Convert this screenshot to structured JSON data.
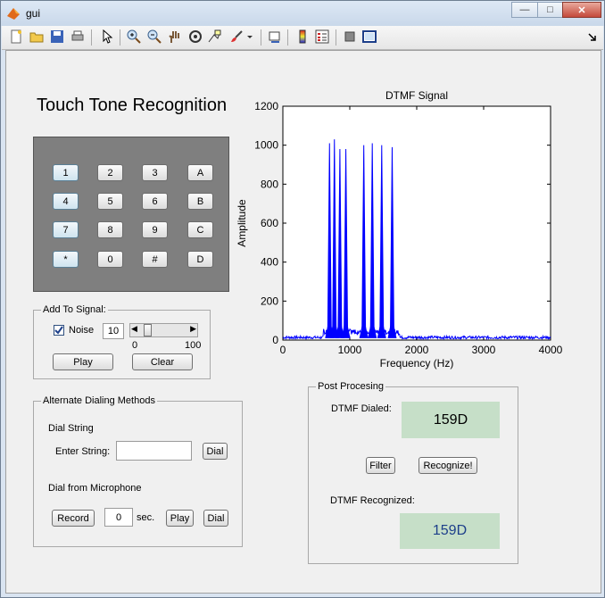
{
  "window": {
    "title": "gui",
    "min_icon": "minimize-icon",
    "max_icon": "maximize-icon",
    "close_icon": "close-icon"
  },
  "toolbar": {
    "items": [
      "new-file-icon",
      "open-folder-icon",
      "save-icon",
      "print-icon",
      "pointer-icon",
      "zoom-in-icon",
      "zoom-out-icon",
      "pan-hand-icon",
      "rotate-3d-icon",
      "data-cursor-icon",
      "brush-icon",
      "link-plot-icon",
      "colorbar-icon",
      "legend-icon",
      "hide-plot-tools-icon",
      "show-plot-tools-icon",
      "dock-arrow-icon"
    ]
  },
  "main": {
    "title": "Touch Tone Recognition"
  },
  "keypad": {
    "keys": [
      "1",
      "2",
      "3",
      "A",
      "4",
      "5",
      "6",
      "B",
      "7",
      "8",
      "9",
      "C",
      "*",
      "0",
      "#",
      "D"
    ]
  },
  "add_signal": {
    "title": "Add To Signal:",
    "noise_label": "Noise",
    "noise_checked": true,
    "noise_value": "10",
    "slider_min": "0",
    "slider_max": "100",
    "slider_level_percent": 10,
    "play": "Play",
    "clear": "Clear"
  },
  "alternate": {
    "title": "Alternate Dialing Methods",
    "dial_string_label": "Dial String",
    "enter_string_label": "Enter String:",
    "enter_string_value": "",
    "dial_button": "Dial",
    "mic_label": "Dial from Microphone",
    "record_button": "Record",
    "seconds_value": "0",
    "sec_label": "sec.",
    "play_button": "Play",
    "mic_dial_button": "Dial"
  },
  "post": {
    "title": "Post Procesing",
    "dialed_label": "DTMF Dialed:",
    "dialed_value": "159D",
    "filter_button": "Filter",
    "recognize_button": "Recognize!",
    "recognized_label": "DTMF Recognized:",
    "recognized_value": "159D"
  },
  "chart_data": {
    "type": "line",
    "title": "DTMF Signal",
    "xlabel": "Frequency (Hz)",
    "ylabel": "Amplitude",
    "xlim": [
      0,
      4000
    ],
    "ylim": [
      0,
      1200
    ],
    "xticks": [
      0,
      1000,
      2000,
      3000,
      4000
    ],
    "yticks": [
      0,
      200,
      400,
      600,
      800,
      1000,
      1200
    ],
    "grid": false,
    "series": [
      {
        "color": "#0000ff",
        "peaks": [
          {
            "x": 697,
            "y": 1010
          },
          {
            "x": 770,
            "y": 1030
          },
          {
            "x": 852,
            "y": 980
          },
          {
            "x": 941,
            "y": 980
          },
          {
            "x": 1209,
            "y": 1000
          },
          {
            "x": 1336,
            "y": 1010
          },
          {
            "x": 1477,
            "y": 1000
          },
          {
            "x": 1633,
            "y": 990
          }
        ],
        "noise_floor": 15
      }
    ]
  }
}
